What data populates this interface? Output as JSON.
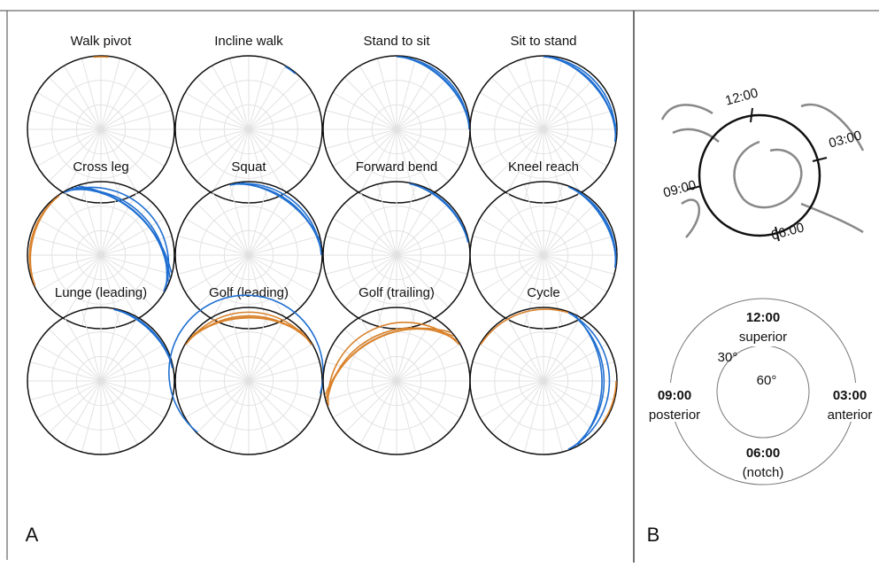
{
  "panel_a": {
    "label": "A",
    "plots": [
      {
        "title": "Walk pivot"
      },
      {
        "title": "Incline walk"
      },
      {
        "title": "Stand to sit"
      },
      {
        "title": "Sit to stand"
      },
      {
        "title": "Cross leg"
      },
      {
        "title": "Squat"
      },
      {
        "title": "Forward bend"
      },
      {
        "title": "Kneel reach"
      },
      {
        "title": "Lunge (leading)"
      },
      {
        "title": "Golf (leading)"
      },
      {
        "title": "Golf (trailing)"
      },
      {
        "title": "Cycle"
      }
    ]
  },
  "panel_b": {
    "label": "B",
    "photo_labels": {
      "top": "12:00",
      "right": "03:00",
      "bottom": "06:00",
      "left": "09:00"
    },
    "schematic": {
      "top": {
        "time": "12:00",
        "name": "superior"
      },
      "left": {
        "time": "09:00",
        "name": "posterior"
      },
      "right": {
        "time": "03:00",
        "name": "anterior"
      },
      "bottom": {
        "time": "06:00",
        "name": "(notch)"
      },
      "outer_ring": "30°",
      "inner_ring": "60°"
    }
  }
}
